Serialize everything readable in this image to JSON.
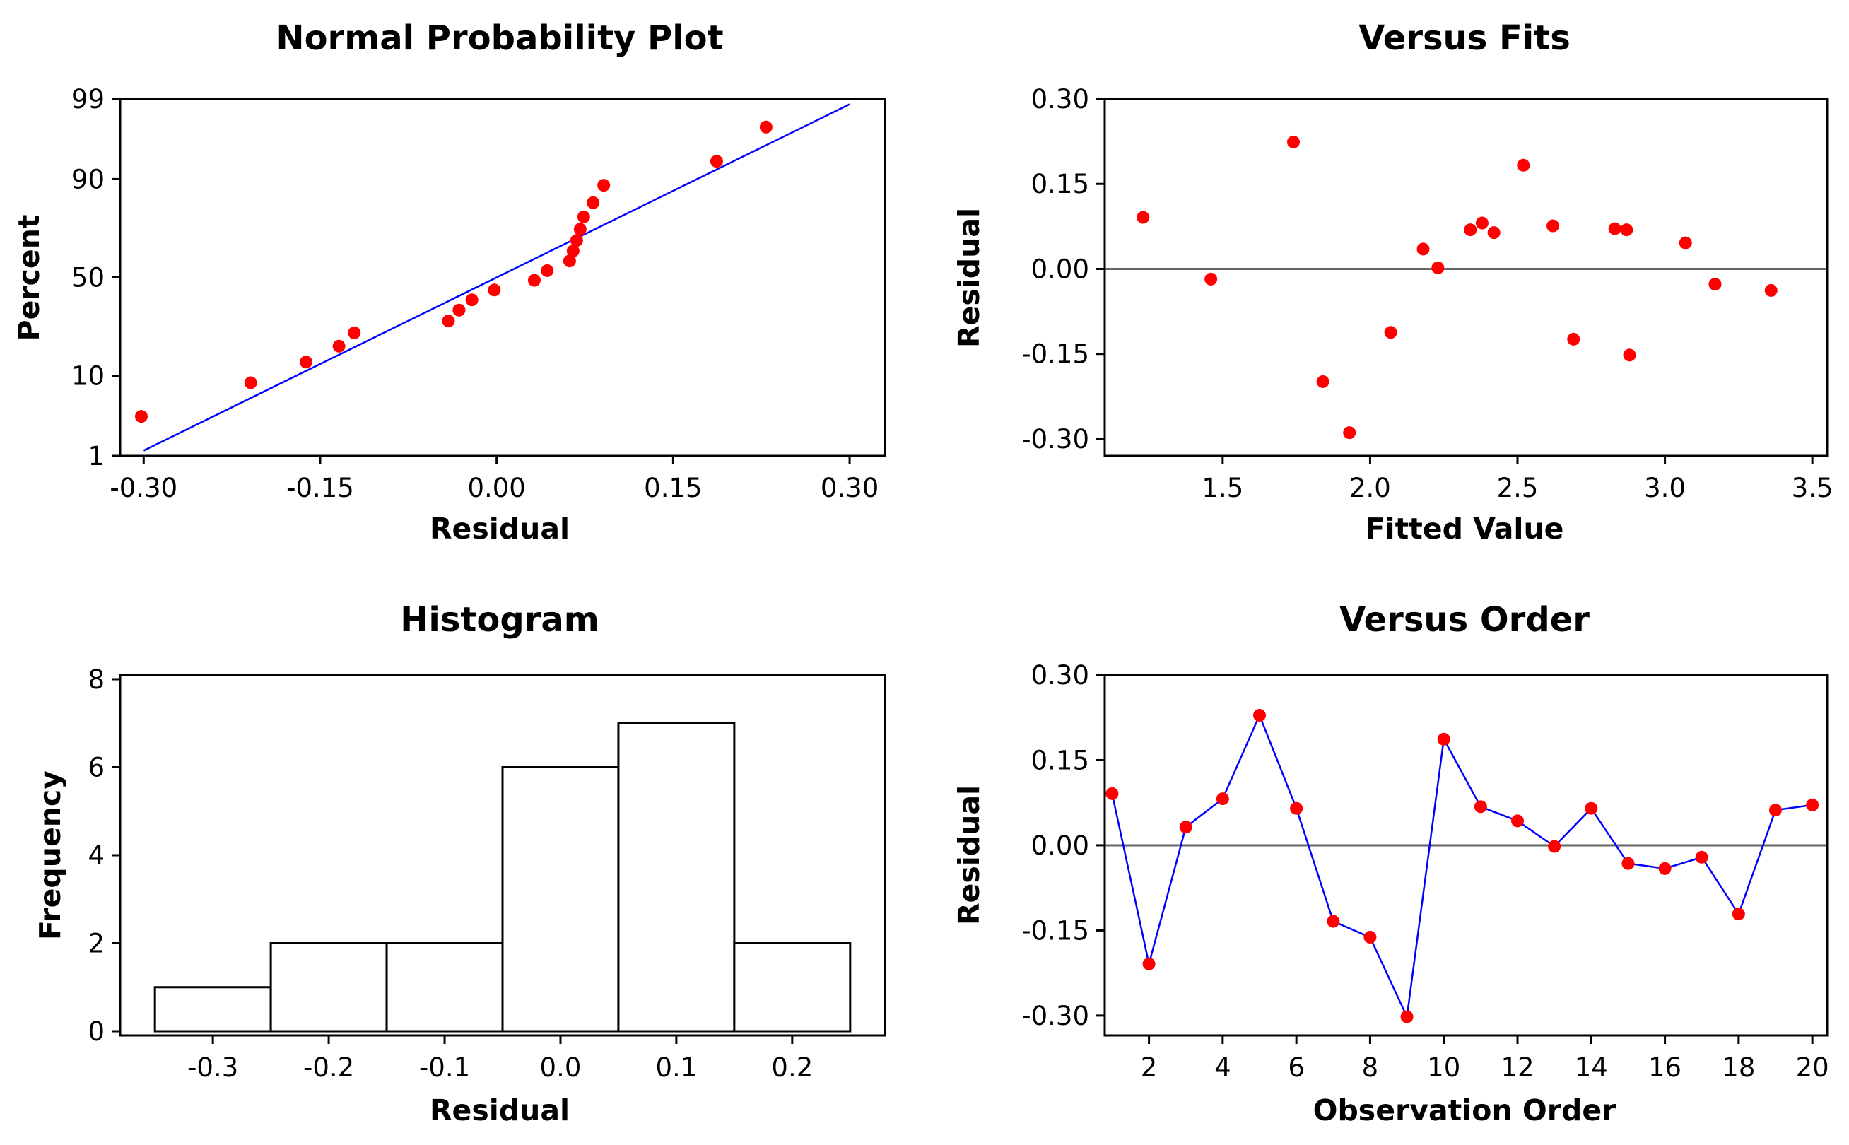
{
  "colors": {
    "marker": "#ff0000",
    "fit_line": "#0000ff",
    "axis": "#000000",
    "reference_line": "#666666",
    "bar_fill": "#ffffff"
  },
  "chart_data": [
    {
      "id": "normal",
      "type": "scatter",
      "title": "Normal Probability Plot",
      "xlabel": "Residual",
      "ylabel": "Percent",
      "xlim": [
        -0.32,
        0.33
      ],
      "ylim": [
        1,
        99
      ],
      "y_scale": "normal-probability",
      "xticks": [
        -0.3,
        -0.15,
        0.0,
        0.15,
        0.3
      ],
      "xtick_labels": [
        "-0.30",
        "-0.15",
        "0.00",
        "0.15",
        "0.30"
      ],
      "yticks": [
        1,
        10,
        50,
        90,
        99
      ],
      "ytick_labels": [
        "1",
        "10",
        "50",
        "90",
        "99"
      ],
      "fit_line": {
        "x": [
          -0.3,
          0.3
        ],
        "y": [
          1.2,
          98.8
        ]
      },
      "points": [
        {
          "x": -0.302,
          "y": 3.5
        },
        {
          "x": -0.209,
          "y": 8.5
        },
        {
          "x": -0.162,
          "y": 13.5
        },
        {
          "x": -0.134,
          "y": 18.5
        },
        {
          "x": -0.121,
          "y": 23.5
        },
        {
          "x": -0.041,
          "y": 28.5
        },
        {
          "x": -0.032,
          "y": 33.5
        },
        {
          "x": -0.021,
          "y": 38.5
        },
        {
          "x": -0.002,
          "y": 43.5
        },
        {
          "x": 0.032,
          "y": 48.5
        },
        {
          "x": 0.043,
          "y": 53.5
        },
        {
          "x": 0.062,
          "y": 58.5
        },
        {
          "x": 0.065,
          "y": 63.5
        },
        {
          "x": 0.068,
          "y": 68.5
        },
        {
          "x": 0.071,
          "y": 73.5
        },
        {
          "x": 0.074,
          "y": 78.5
        },
        {
          "x": 0.082,
          "y": 83.5
        },
        {
          "x": 0.091,
          "y": 88.5
        },
        {
          "x": 0.187,
          "y": 93.5
        },
        {
          "x": 0.229,
          "y": 97.5
        }
      ]
    },
    {
      "id": "fits",
      "type": "scatter",
      "title": "Versus Fits",
      "xlabel": "Fitted Value",
      "ylabel": "Residual",
      "xlim": [
        1.1,
        3.55
      ],
      "ylim": [
        -0.33,
        0.3
      ],
      "xticks": [
        1.5,
        2.0,
        2.5,
        3.0,
        3.5
      ],
      "xtick_labels": [
        "1.5",
        "2.0",
        "2.5",
        "3.0",
        "3.5"
      ],
      "yticks": [
        -0.3,
        -0.15,
        0.0,
        0.15,
        0.3
      ],
      "ytick_labels": [
        "-0.30",
        "-0.15",
        "0.00",
        "0.15",
        "0.30"
      ],
      "reference_y": 0,
      "points": [
        {
          "x": 1.23,
          "y": 0.091
        },
        {
          "x": 1.46,
          "y": -0.018
        },
        {
          "x": 1.74,
          "y": 0.224
        },
        {
          "x": 1.84,
          "y": -0.199
        },
        {
          "x": 1.93,
          "y": -0.289
        },
        {
          "x": 2.07,
          "y": -0.112
        },
        {
          "x": 2.18,
          "y": 0.035
        },
        {
          "x": 2.23,
          "y": 0.002
        },
        {
          "x": 2.34,
          "y": 0.069
        },
        {
          "x": 2.38,
          "y": 0.081
        },
        {
          "x": 2.42,
          "y": 0.064
        },
        {
          "x": 2.52,
          "y": 0.183
        },
        {
          "x": 2.62,
          "y": 0.076
        },
        {
          "x": 2.69,
          "y": -0.124
        },
        {
          "x": 2.83,
          "y": 0.071
        },
        {
          "x": 2.87,
          "y": 0.069
        },
        {
          "x": 2.88,
          "y": -0.152
        },
        {
          "x": 3.07,
          "y": 0.046
        },
        {
          "x": 3.17,
          "y": -0.027
        },
        {
          "x": 3.36,
          "y": -0.038
        }
      ]
    },
    {
      "id": "hist",
      "type": "bar",
      "title": "Histogram",
      "xlabel": "Residual",
      "ylabel": "Frequency",
      "xlim": [
        -0.38,
        0.28
      ],
      "ylim": [
        0,
        8
      ],
      "xticks": [
        -0.3,
        -0.2,
        -0.1,
        0.0,
        0.1,
        0.2
      ],
      "xtick_labels": [
        "-0.3",
        "-0.2",
        "-0.1",
        "0.0",
        "0.1",
        "0.2"
      ],
      "yticks": [
        0,
        2,
        4,
        6,
        8
      ],
      "ytick_labels": [
        "0",
        "2",
        "4",
        "6",
        "8"
      ],
      "bin_edges": [
        -0.35,
        -0.25,
        -0.15,
        -0.05,
        0.05,
        0.15,
        0.25
      ],
      "values": [
        1,
        2,
        2,
        6,
        7,
        2
      ]
    },
    {
      "id": "order",
      "type": "line",
      "title": "Versus Order",
      "xlabel": "Observation Order",
      "ylabel": "Residual",
      "xlim": [
        0.8,
        20.4
      ],
      "ylim": [
        -0.335,
        0.3
      ],
      "xticks": [
        2,
        4,
        6,
        8,
        10,
        12,
        14,
        16,
        18,
        20
      ],
      "xtick_labels": [
        "2",
        "4",
        "6",
        "8",
        "10",
        "12",
        "14",
        "16",
        "18",
        "20"
      ],
      "yticks": [
        -0.3,
        -0.15,
        0.0,
        0.15,
        0.3
      ],
      "ytick_labels": [
        "-0.30",
        "-0.15",
        "0.00",
        "0.15",
        "0.30"
      ],
      "reference_y": 0,
      "x": [
        1,
        2,
        3,
        4,
        5,
        6,
        7,
        8,
        9,
        10,
        11,
        12,
        13,
        14,
        15,
        16,
        17,
        18,
        19,
        20
      ],
      "y": [
        0.091,
        -0.209,
        0.032,
        0.082,
        0.229,
        0.065,
        -0.134,
        -0.162,
        -0.302,
        0.187,
        0.068,
        0.043,
        -0.002,
        0.065,
        -0.032,
        -0.041,
        -0.021,
        -0.121,
        0.062,
        0.071
      ]
    }
  ]
}
